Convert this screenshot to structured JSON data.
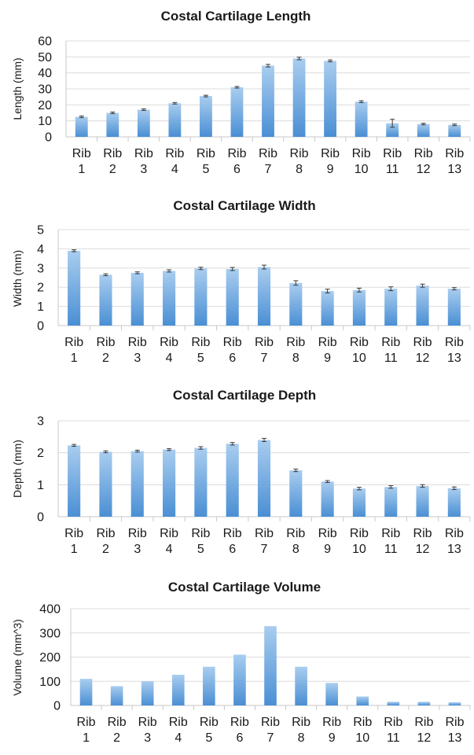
{
  "chart_data": [
    {
      "type": "bar",
      "title": "Costal Cartilage Length",
      "xlabel": "",
      "ylabel": "Length (mm)",
      "ylim": [
        0,
        60
      ],
      "yticks": [
        0,
        10,
        20,
        30,
        40,
        50,
        60
      ],
      "categories": [
        "Rib 1",
        "Rib 2",
        "Rib 3",
        "Rib 4",
        "Rib 5",
        "Rib 6",
        "Rib 7",
        "Rib 8",
        "Rib 9",
        "Rib 10",
        "Rib 11",
        "Rib 12",
        "Rib 13"
      ],
      "values": [
        12.5,
        15,
        17,
        21,
        25.5,
        31,
        44.5,
        49,
        47.5,
        22,
        8.5,
        8,
        7.5
      ],
      "errors": [
        0.5,
        0.5,
        0.5,
        0.5,
        0.5,
        0.5,
        0.8,
        0.8,
        0.6,
        0.6,
        2.5,
        0.5,
        0.5
      ],
      "grid": true,
      "bar_color": "#5a9fd8"
    },
    {
      "type": "bar",
      "title": "Costal Cartilage Width",
      "xlabel": "",
      "ylabel": "Width (mm)",
      "ylim": [
        0,
        5
      ],
      "yticks": [
        0,
        1,
        2,
        3,
        4,
        5
      ],
      "categories": [
        "Rib 1",
        "Rib 2",
        "Rib 3",
        "Rib 4",
        "Rib 5",
        "Rib 6",
        "Rib 7",
        "Rib 8",
        "Rib 9",
        "Rib 10",
        "Rib 11",
        "Rib 12",
        "Rib 13"
      ],
      "values": [
        3.9,
        2.65,
        2.75,
        2.85,
        2.98,
        2.95,
        3.05,
        2.22,
        1.8,
        1.85,
        1.92,
        2.08,
        1.92
      ],
      "errors": [
        0.05,
        0.05,
        0.05,
        0.06,
        0.06,
        0.08,
        0.1,
        0.12,
        0.1,
        0.1,
        0.1,
        0.08,
        0.06
      ],
      "grid": true,
      "bar_color": "#5a9fd8"
    },
    {
      "type": "bar",
      "title": "Costal Cartilage Depth",
      "xlabel": "",
      "ylabel": "Depth (mm)",
      "ylim": [
        0,
        3
      ],
      "yticks": [
        0,
        1,
        2,
        3
      ],
      "categories": [
        "Rib 1",
        "Rib 2",
        "Rib 3",
        "Rib 4",
        "Rib 5",
        "Rib 6",
        "Rib 7",
        "Rib 8",
        "Rib 9",
        "Rib 10",
        "Rib 11",
        "Rib 12",
        "Rib 13"
      ],
      "values": [
        2.23,
        2.03,
        2.05,
        2.1,
        2.15,
        2.28,
        2.4,
        1.45,
        1.1,
        0.88,
        0.93,
        0.96,
        0.89
      ],
      "errors": [
        0.03,
        0.03,
        0.03,
        0.03,
        0.04,
        0.04,
        0.05,
        0.04,
        0.03,
        0.04,
        0.04,
        0.04,
        0.04
      ],
      "grid": true,
      "bar_color": "#5a9fd8"
    },
    {
      "type": "bar",
      "title": "Costal Cartilage Volume",
      "xlabel": "",
      "ylabel": "Volume (mm^3)",
      "ylim": [
        0,
        400
      ],
      "yticks": [
        0,
        100,
        200,
        300,
        400
      ],
      "categories": [
        "Rib 1",
        "Rib 2",
        "Rib 3",
        "Rib 4",
        "Rib 5",
        "Rib 6",
        "Rib 7",
        "Rib 8",
        "Rib 9",
        "Rib 10",
        "Rib 11",
        "Rib 12",
        "Rib 13"
      ],
      "values": [
        110,
        80,
        100,
        127,
        160,
        210,
        328,
        160,
        93,
        37,
        15,
        15,
        13
      ],
      "errors": [
        0,
        0,
        0,
        0,
        0,
        0,
        0,
        0,
        0,
        0,
        0,
        0,
        0
      ],
      "grid": true,
      "bar_color": "#5a9fd8"
    }
  ]
}
